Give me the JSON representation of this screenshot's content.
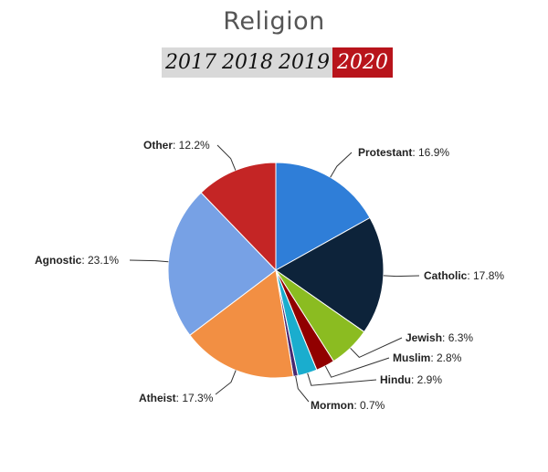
{
  "header": {
    "title": "Religion",
    "years": [
      "2017",
      "2018",
      "2019",
      "2020"
    ],
    "selected_year": "2020"
  },
  "chart_data": {
    "type": "pie",
    "title": "Religion",
    "slices": [
      {
        "name": "Protestant",
        "value": 16.9,
        "label": "16.9%",
        "color": "#2f7ed8"
      },
      {
        "name": "Catholic",
        "value": 17.8,
        "label": "17.8%",
        "color": "#0d233a"
      },
      {
        "name": "Jewish",
        "value": 6.3,
        "label": "6.3%",
        "color": "#8bbc21"
      },
      {
        "name": "Muslim",
        "value": 2.8,
        "label": "2.8%",
        "color": "#910000"
      },
      {
        "name": "Hindu",
        "value": 2.9,
        "label": "2.9%",
        "color": "#1aadce"
      },
      {
        "name": "Mormon",
        "value": 0.7,
        "label": "0.7%",
        "color": "#492970"
      },
      {
        "name": "Atheist",
        "value": 17.3,
        "label": "17.3%",
        "color": "#f28f43"
      },
      {
        "name": "Agnostic",
        "value": 23.1,
        "label": "23.1%",
        "color": "#77a1e5"
      },
      {
        "name": "Other",
        "value": 12.2,
        "label": "12.2%",
        "color": "#c42525"
      }
    ]
  }
}
